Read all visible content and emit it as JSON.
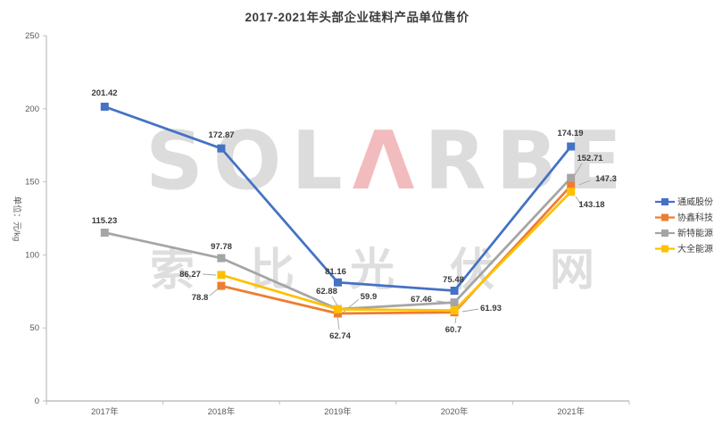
{
  "title": "2017-2021年头部企业硅料产品单位售价",
  "watermark": {
    "logo_prefix": "SOL",
    "logo_a": "Λ",
    "logo_suffix": "RBE",
    "cjk": "索比光伏网"
  },
  "chart_data": {
    "type": "line",
    "title": "2017-2021年头部企业硅料产品单位售价",
    "categories": [
      "2017年",
      "2018年",
      "2019年",
      "2020年",
      "2021年"
    ],
    "series": [
      {
        "name": "通威股份",
        "color": "#4472C4",
        "values": [
          201.42,
          172.87,
          81.16,
          75.48,
          174.19
        ]
      },
      {
        "name": "协鑫科技",
        "color": "#ED7D31",
        "values": [
          null,
          78.8,
          59.9,
          60.7,
          147.3
        ]
      },
      {
        "name": "新特能源",
        "color": "#A5A5A5",
        "values": [
          115.23,
          97.78,
          62.88,
          67.46,
          152.71
        ]
      },
      {
        "name": "大全能源",
        "color": "#FFC000",
        "values": [
          null,
          86.27,
          62.74,
          61.93,
          143.18
        ]
      }
    ],
    "xlabel": "",
    "ylabel": "单位：元/kg",
    "ylim": [
      0,
      250
    ],
    "ytick_step": 50,
    "grid": false,
    "legend_position": "right",
    "marker": "square",
    "data_labels": true,
    "colors": {
      "axis_line": "#BFBFBF",
      "axis_text": "#595959",
      "data_label_text": "#3a3a3a",
      "leader_line": "#A6A6A6",
      "legend_text": "#404040"
    }
  }
}
